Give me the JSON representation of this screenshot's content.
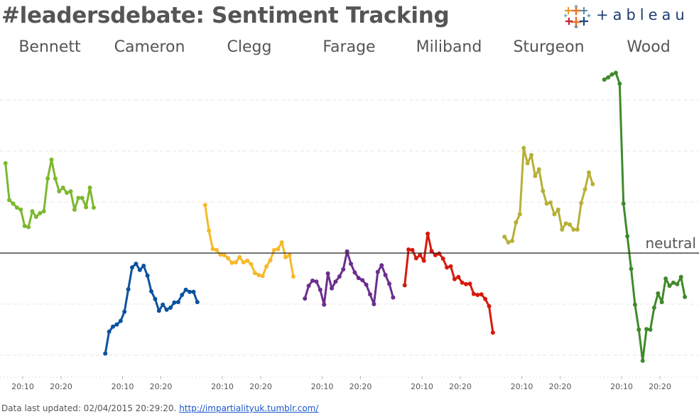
{
  "header": {
    "title": "#leadersdebate: Sentiment Tracking",
    "logo_text": "+ableau",
    "logo_name": "tableau"
  },
  "footer": {
    "prefix": "Data last updated: 02/04/2015 20:29:20.",
    "link_text": "http://impartialityuk.tumblr.com/"
  },
  "chart_data": {
    "type": "line",
    "title": "#leadersdebate: Sentiment Tracking",
    "xlabel": "",
    "ylabel": "",
    "layout": "small-multiples",
    "panels": [
      "Bennett",
      "Cameron",
      "Clegg",
      "Farage",
      "Miliband",
      "Sturgeon",
      "Wood"
    ],
    "x_tick_labels": [
      "20:10",
      "20:20"
    ],
    "x_unit": "minutes after 20:00",
    "reference_line": {
      "value": 0,
      "label": "neutral"
    },
    "ylim": [
      -2.4,
      3.5
    ],
    "grid": true,
    "gridlines": [
      -2,
      -1,
      1,
      2,
      3
    ],
    "series": [
      {
        "name": "Bennett",
        "color": "#7cb82f",
        "x_start": 5.5,
        "values": [
          1.76,
          1.04,
          0.97,
          0.89,
          0.85,
          0.53,
          0.51,
          0.82,
          0.71,
          0.78,
          0.82,
          1.46,
          1.83,
          1.46,
          1.21,
          1.28,
          1.18,
          1.21,
          0.85,
          1.08,
          1.08,
          0.9,
          1.28,
          0.89
        ]
      },
      {
        "name": "Cameron",
        "color": "#0b52a0",
        "x_start": 5.5,
        "values": [
          -1.97,
          -1.54,
          -1.44,
          -1.4,
          -1.33,
          -1.15,
          -0.71,
          -0.28,
          -0.21,
          -0.33,
          -0.25,
          -0.44,
          -0.75,
          -0.9,
          -1.13,
          -1.01,
          -1.11,
          -1.07,
          -0.97,
          -0.96,
          -0.82,
          -0.72,
          -0.76,
          -0.76,
          -0.96
        ]
      },
      {
        "name": "Clegg",
        "color": "#f7b928",
        "x_start": 5.5,
        "values": [
          0.94,
          0.44,
          0.08,
          0.06,
          -0.03,
          -0.04,
          -0.1,
          -0.19,
          -0.18,
          -0.08,
          -0.18,
          -0.15,
          -0.22,
          -0.39,
          -0.43,
          -0.45,
          -0.26,
          -0.14,
          0.06,
          0.08,
          0.21,
          -0.08,
          -0.04,
          -0.46
        ]
      },
      {
        "name": "Farage",
        "color": "#6b2e8c",
        "x_start": 5.5,
        "values": [
          -0.89,
          -0.64,
          -0.54,
          -0.56,
          -0.72,
          -1.01,
          -0.4,
          -0.69,
          -0.56,
          -0.46,
          -0.32,
          0.03,
          -0.21,
          -0.38,
          -0.49,
          -0.53,
          -0.62,
          -0.81,
          -1.0,
          -0.37,
          -0.24,
          -0.43,
          -0.6,
          -0.87
        ]
      },
      {
        "name": "Miliband",
        "color": "#d7190d",
        "x_start": 5.5,
        "values": [
          -0.63,
          0.07,
          0.06,
          -0.1,
          -0.04,
          -0.15,
          0.38,
          0.04,
          -0.04,
          -0.01,
          -0.11,
          -0.28,
          -0.26,
          -0.51,
          -0.47,
          -0.58,
          -0.61,
          -0.6,
          -0.8,
          -0.82,
          -0.81,
          -0.9,
          -1.04,
          -1.56
        ]
      },
      {
        "name": "Sturgeon",
        "color": "#b7b038",
        "x_start": 5.5,
        "values": [
          0.32,
          0.21,
          0.24,
          0.6,
          0.76,
          2.06,
          1.76,
          1.92,
          1.51,
          1.64,
          1.22,
          0.97,
          0.99,
          0.76,
          0.85,
          0.46,
          0.58,
          0.56,
          0.46,
          0.46,
          0.98,
          1.25,
          1.58,
          1.35
        ]
      },
      {
        "name": "Wood",
        "color": "#3f8a2a",
        "x_start": 5.5,
        "values": [
          3.4,
          3.44,
          3.5,
          3.53,
          3.32,
          0.97,
          0.33,
          -0.31,
          -1.01,
          -1.5,
          -2.11,
          -1.49,
          -1.5,
          -1.07,
          -0.79,
          -0.96,
          -0.5,
          -0.64,
          -0.58,
          -0.61,
          -0.47,
          -0.86
        ]
      }
    ]
  }
}
